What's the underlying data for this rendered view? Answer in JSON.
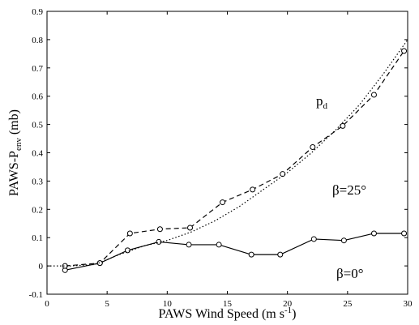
{
  "chart_data": {
    "type": "line",
    "xlabel": {
      "parts": [
        "PAWS Wind Speed (m s",
        "-1",
        ")"
      ]
    },
    "ylabel": {
      "parts": [
        "PAWS-P",
        "env",
        " (mb)"
      ]
    },
    "xlim": [
      0,
      30
    ],
    "xticks": [
      0,
      5,
      10,
      15,
      20,
      25,
      30
    ],
    "ylim": [
      -0.1,
      0.9
    ],
    "yticks": [
      -0.1,
      0,
      0.1,
      0.2,
      0.3,
      0.4,
      0.5,
      0.6,
      0.7,
      0.8,
      0.9
    ],
    "series": [
      {
        "label": {
          "text": "β=0°"
        },
        "color": "#000000",
        "style": "solid",
        "markers": true,
        "x": [
          1.5,
          4.4,
          6.7,
          9.3,
          11.8,
          14.3,
          17.0,
          19.4,
          22.2,
          24.7,
          27.2,
          29.7
        ],
        "values": [
          -0.015,
          0.01,
          0.055,
          0.085,
          0.075,
          0.075,
          0.04,
          0.04,
          0.095,
          0.09,
          0.115,
          0.115
        ]
      },
      {
        "label": {
          "text": "β=25°"
        },
        "color": "#000000",
        "style": "dashed",
        "markers": true,
        "x": [
          1.5,
          4.4,
          6.9,
          9.4,
          11.9,
          14.6,
          17.1,
          19.6,
          22.1,
          24.6,
          27.2,
          29.7
        ],
        "values": [
          0.0,
          0.01,
          0.115,
          0.13,
          0.135,
          0.225,
          0.27,
          0.325,
          0.42,
          0.495,
          0.605,
          0.76
        ]
      },
      {
        "label": {
          "text": "p",
          "subscript": "d"
        },
        "color": "#000000",
        "style": "dotted",
        "markers": false,
        "x": [
          0,
          2,
          4,
          6,
          8,
          10,
          12,
          14,
          16,
          18,
          20,
          22,
          24,
          26,
          28,
          30
        ],
        "values": [
          0,
          0,
          0.005,
          0.04,
          0.07,
          0.09,
          0.12,
          0.16,
          0.21,
          0.27,
          0.33,
          0.4,
          0.48,
          0.57,
          0.68,
          0.8
        ]
      }
    ]
  }
}
